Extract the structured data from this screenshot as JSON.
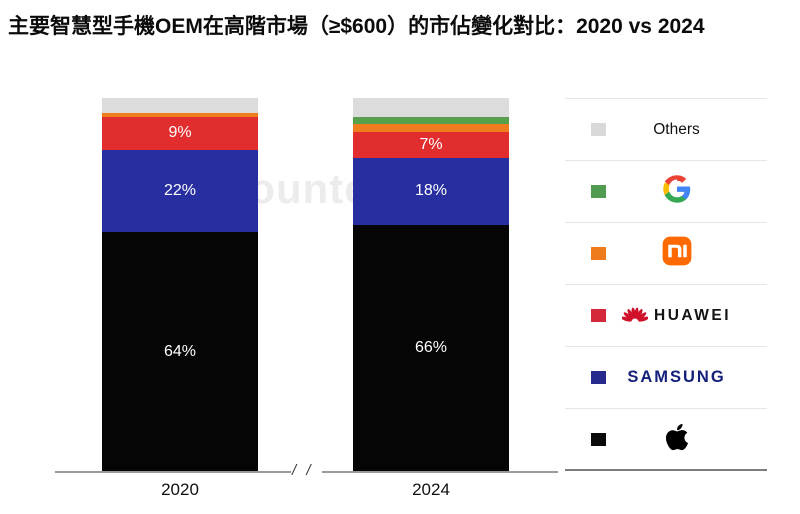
{
  "title": "主要智慧型手機OEM在高階市場（≥$600）的市佔變化對比：2020 vs 2024",
  "watermark": "Counterpoint",
  "axis": {
    "break_label": "/ /"
  },
  "chart_data": {
    "type": "bar",
    "stacked": true,
    "unit": "%",
    "title": "主要智慧型手機OEM在高階市場（≥$600）的市佔變化對比：2020 vs 2024",
    "categories": [
      "2020",
      "2024"
    ],
    "series": [
      {
        "name": "Apple",
        "values": [
          64,
          66
        ]
      },
      {
        "name": "Samsung",
        "values": [
          22,
          18
        ]
      },
      {
        "name": "Huawei",
        "values": [
          9,
          7
        ]
      },
      {
        "name": "Xiaomi",
        "values": [
          1,
          2
        ]
      },
      {
        "name": "Google",
        "values": [
          0,
          2
        ]
      },
      {
        "name": "Others",
        "values": [
          4,
          5
        ]
      }
    ],
    "ylim": [
      0,
      100
    ],
    "grid": false,
    "legend_position": "right",
    "axis_break_between_bars": true
  },
  "bars": [
    {
      "year": "2020",
      "segments": [
        {
          "brand": "others",
          "value": 4,
          "label": ""
        },
        {
          "brand": "xiaomi",
          "value": 1,
          "label": ""
        },
        {
          "brand": "huawei",
          "value": 9,
          "label": "9%"
        },
        {
          "brand": "samsung",
          "value": 22,
          "label": "22%"
        },
        {
          "brand": "apple",
          "value": 64,
          "label": "64%"
        }
      ]
    },
    {
      "year": "2024",
      "segments": [
        {
          "brand": "others",
          "value": 5,
          "label": ""
        },
        {
          "brand": "google",
          "value": 2,
          "label": ""
        },
        {
          "brand": "xiaomi",
          "value": 2,
          "label": ""
        },
        {
          "brand": "huawei",
          "value": 7,
          "label": "7%"
        },
        {
          "brand": "samsung",
          "value": 18,
          "label": "18%"
        },
        {
          "brand": "apple",
          "value": 66,
          "label": "66%"
        }
      ]
    }
  ],
  "colors": {
    "others": "#dcdcdc",
    "google": "#57a04e",
    "xiaomi": "#ef7d1d",
    "huawei": "#e12d2d",
    "samsung": "#272fa0",
    "apple": "#050505"
  },
  "legend": {
    "items": [
      {
        "id": "others",
        "swatch": "#d9d9d9",
        "label": "Others"
      },
      {
        "id": "google",
        "swatch": "#4f9b4f",
        "label": "Google"
      },
      {
        "id": "xiaomi",
        "swatch": "#ee7c1d",
        "label": "Xiaomi"
      },
      {
        "id": "huawei",
        "swatch": "#d3293b",
        "label": "HUAWEI"
      },
      {
        "id": "samsung",
        "swatch": "#272a8c",
        "label": "SAMSUNG"
      },
      {
        "id": "apple",
        "swatch": "#0a0a0a",
        "label": "Apple"
      }
    ]
  }
}
